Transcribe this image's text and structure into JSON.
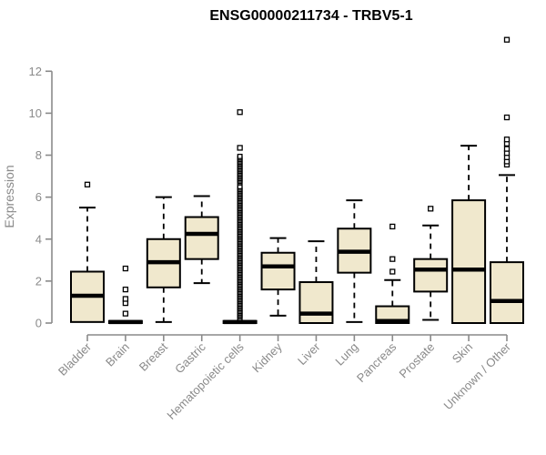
{
  "chart_data": {
    "type": "boxplot",
    "title": "ENSG00000211734 - TRBV5-1",
    "xlabel": "",
    "ylabel": "Expression",
    "ylim": [
      0,
      12
    ],
    "yticks": [
      0,
      2,
      4,
      6,
      8,
      10,
      12
    ],
    "grid": false,
    "legend": "none",
    "colors": {
      "box_fill": "#F0E8CD",
      "box_stroke": "#000000",
      "median": "#000000",
      "axis": "#8a8a8a",
      "tick_label": "#8a8a8a",
      "title": "#000000",
      "background": "#ffffff"
    },
    "categories": [
      "Bladder",
      "Brain",
      "Breast",
      "Gastric",
      "Hematopoietic cells",
      "Kidney",
      "Liver",
      "Lung",
      "Pancreas",
      "Prostate",
      "Skin",
      "Unknown / Other"
    ],
    "series": [
      {
        "category": "Bladder",
        "low": 0.05,
        "q1": 0.05,
        "median": 1.3,
        "q3": 2.45,
        "high": 5.5,
        "outliers": [
          6.6
        ]
      },
      {
        "category": "Brain",
        "low": 0.0,
        "q1": 0.0,
        "median": 0.05,
        "q3": 0.1,
        "high": 0.1,
        "outliers": [
          0.45,
          0.95,
          1.15,
          1.6,
          2.6
        ]
      },
      {
        "category": "Breast",
        "low": 0.05,
        "q1": 1.7,
        "median": 2.9,
        "q3": 4.0,
        "high": 6.0,
        "outliers": []
      },
      {
        "category": "Gastric",
        "low": 1.9,
        "q1": 3.05,
        "median": 4.25,
        "q3": 5.05,
        "high": 6.05,
        "outliers": []
      },
      {
        "category": "Hematopoietic cells",
        "low": 0.0,
        "q1": 0.0,
        "median": 0.05,
        "q3": 0.1,
        "high": 0.1,
        "outliers": [
          8.35,
          10.05
        ],
        "outlier_columns": [
          {
            "from": 0.2,
            "to": 6.5,
            "step": 0.07
          },
          {
            "from": 6.68,
            "to": 7.95,
            "step": 0.07
          }
        ]
      },
      {
        "category": "Kidney",
        "low": 0.35,
        "q1": 1.6,
        "median": 2.7,
        "q3": 3.35,
        "high": 4.05,
        "outliers": []
      },
      {
        "category": "Liver",
        "low": 0.0,
        "q1": 0.0,
        "median": 0.45,
        "q3": 1.95,
        "high": 3.9,
        "outliers": []
      },
      {
        "category": "Lung",
        "low": 0.05,
        "q1": 2.4,
        "median": 3.4,
        "q3": 4.5,
        "high": 5.85,
        "outliers": []
      },
      {
        "category": "Pancreas",
        "low": 0.0,
        "q1": 0.0,
        "median": 0.1,
        "q3": 0.8,
        "high": 2.05,
        "outliers": [
          2.45,
          3.05,
          4.6
        ]
      },
      {
        "category": "Prostate",
        "low": 0.15,
        "q1": 1.5,
        "median": 2.55,
        "q3": 3.05,
        "high": 4.65,
        "outliers": [
          5.45
        ]
      },
      {
        "category": "Skin",
        "low": 0.0,
        "q1": 0.0,
        "median": 2.55,
        "q3": 5.85,
        "high": 8.45,
        "outliers": []
      },
      {
        "category": "Unknown / Other",
        "low": 0.0,
        "q1": 0.0,
        "median": 1.05,
        "q3": 2.9,
        "high": 7.05,
        "outliers": [
          7.55,
          7.7,
          7.9,
          8.1,
          8.3,
          8.55,
          8.75,
          9.8,
          13.5
        ]
      }
    ]
  }
}
